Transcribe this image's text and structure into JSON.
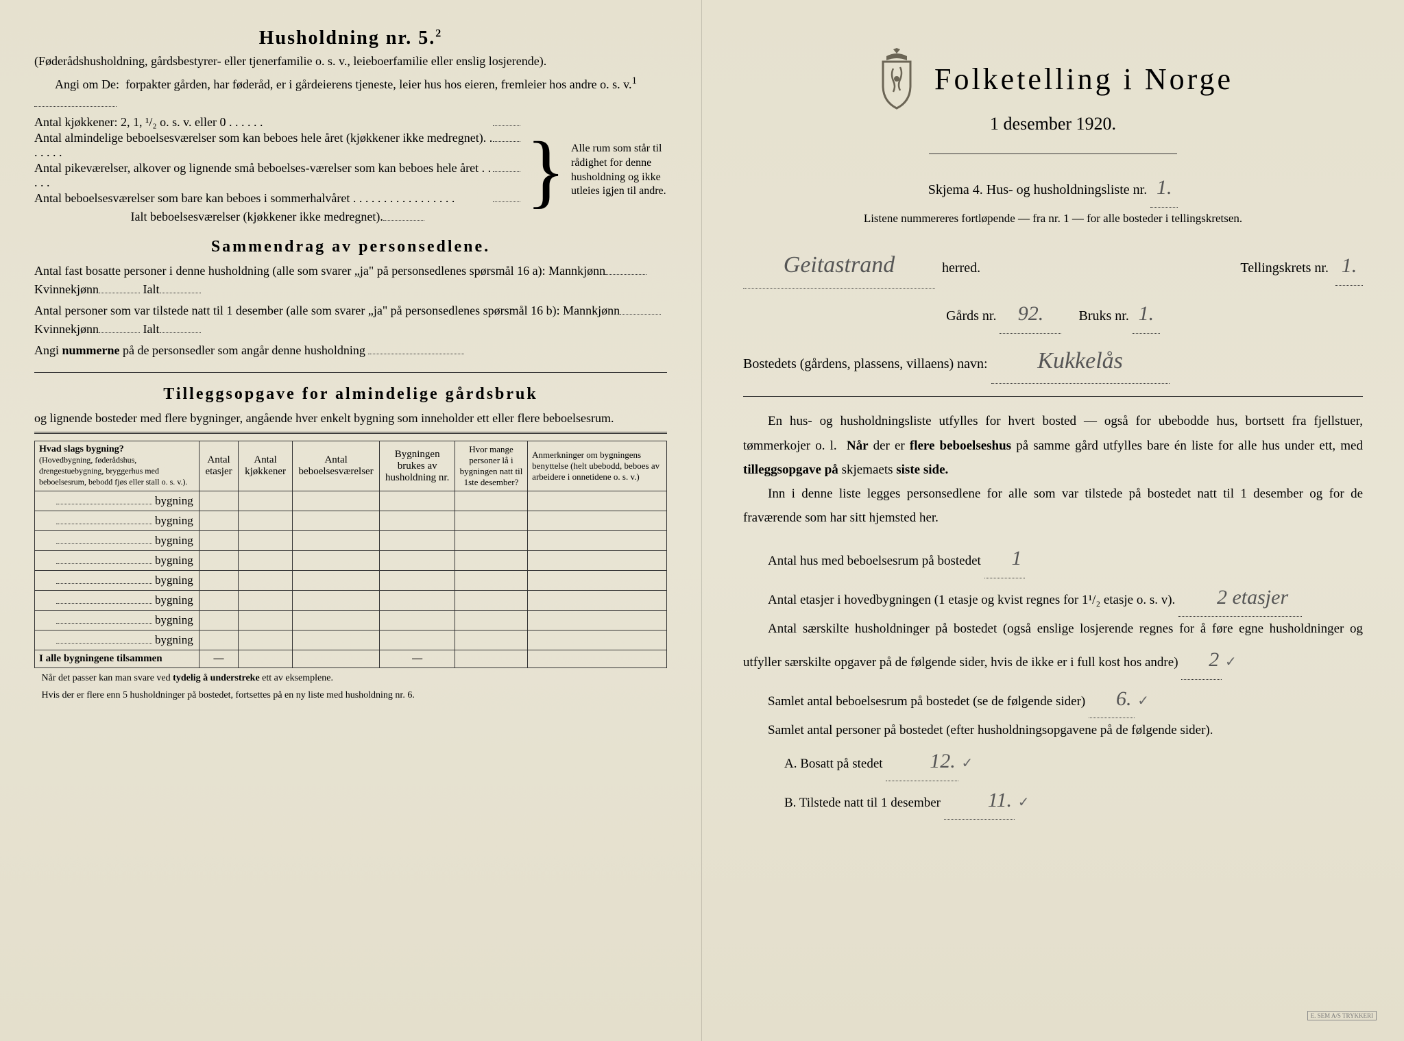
{
  "left": {
    "heading": "Husholdning nr. 5.",
    "heading_sup": "2",
    "para1": "(Føderådshusholdning, gårdsbestyrer- eller tjenerfamilie o. s. v., leieboerfamilie eller enslig losjerende).",
    "para2a": "Angi om De:",
    "para2b": "forpakter gården, har føderåd, er i gårdeierens tjeneste, leier hus hos eieren, fremleier hos andre o. s. v.",
    "para2sup": "1",
    "brace_items": [
      "Antal kjøkkener: 2, 1, ¹/₂ o. s. v. eller 0 . . . . . .",
      "Antal almindelige beboelsesværelser som kan beboes hele året (kjøkkener ikke medregnet).  . . . . . .",
      "Antal pikeværelser, alkover og lignende små beboelses-værelser som kan beboes hele året . . . . .",
      "Antal beboelsesværelser som bare kan beboes i sommerhalvåret . . . . . . . . . . . . . . . . ."
    ],
    "brace_total": "Ialt beboelsesværelser  (kjøkkener ikke medregnet).",
    "brace_right": "Alle rum som står til rådighet for denne husholdning og ikke utleies igjen til andre.",
    "sammendrag_title": "Sammendrag av personsedlene.",
    "samm_l1": "Antal fast bosatte personer i denne husholdning (alle som svarer „ja\" på personsedlenes spørsmål 16 a): Mannkjønn",
    "samm_l1b": "Kvinnekjønn",
    "samm_l1c": "Ialt",
    "samm_l2": "Antal personer som var tilstede natt til 1 desember (alle som svarer „ja\" på personsedlenes spørsmål 16 b): Mannkjønn",
    "samm_l3": "Angi nummerne på de personsedler som angår denne husholdning",
    "tillegg_title": "Tilleggsopgave for almindelige gårdsbruk",
    "tillegg_sub": "og lignende bosteder med flere bygninger, angående hver enkelt bygning som inneholder ett eller flere beboelsesrum.",
    "table": {
      "headers": [
        "Hvad slags bygning?\n(Hovedbygning, føderådshus, drengestuebygning, bryggerhus med beboelsesrum, bebodd fjøs eller stall o. s. v.).",
        "Antal etasjer",
        "Antal kjøkkener",
        "Antal beboelsesværelser",
        "Bygningen brukes av husholdning nr.",
        "Hvor mange personer lå i bygningen natt til 1ste desember?",
        "Anmerkninger om bygningens benyttelse (helt ubebodd, beboes av arbeidere i onnetidene o. s. v.)"
      ],
      "row_label": "bygning",
      "row_count": 8,
      "total_label": "I alle bygningene tilsammen",
      "dash": "—"
    },
    "footnote1": "Når det passer kan man svare ved tydelig å understreke ett av eksemplene.",
    "footnote2": "Hvis der er flere enn 5 husholdninger på bostedet, fortsettes på en ny liste med husholdning nr. 6."
  },
  "right": {
    "title": "Folketelling i Norge",
    "date": "1 desember 1920.",
    "skjema_a": "Skjema 4.  Hus- og husholdningsliste nr.",
    "skjema_nr": "1.",
    "listene": "Listene nummereres fortløpende — fra nr. 1 — for alle bosteder i tellingskretsen.",
    "herred_value": "Geitastrand",
    "herred_label": "herred.",
    "tellingskrets_label": "Tellingskrets nr.",
    "tellingskrets_nr": "1.",
    "gards_label": "Gårds nr.",
    "gards_nr": "92.",
    "bruks_label": "Bruks nr.",
    "bruks_nr": "1.",
    "bosted_label": "Bostedets (gårdens, plassens, villaens) navn:",
    "bosted_value": "Kukkelås",
    "body1": "En hus- og husholdningsliste utfylles for hvert bosted — også for ubebodde hus, bortsett fra fjellstuer, tømmerkojer o. l.  Når der er flere beboelseshus på samme gård utfylles bare én liste for alle hus under ett, med tilleggsopgave på skjemaets siste side.",
    "body2": "Inn i denne liste legges personsedlene for alle som var tilstede på bostedet natt til 1 desember og for de fraværende som har sitt hjemsted her.",
    "q_hus": "Antal hus med beboelsesrum på bostedet",
    "q_hus_val": "1",
    "q_etasjer": "Antal etasjer i hovedbygningen (1 etasje og kvist regnes for 1¹/₂ etasje o. s. v).",
    "q_etasjer_val": "2 etasjer",
    "q_hushold": "Antal særskilte husholdninger på bostedet (også enslige losjerende regnes for å føre egne husholdninger og utfyller særskilte opgaver på de følgende sider, hvis de ikke er i full kost hos andre)",
    "q_hushold_val": "2",
    "q_samlet_rum": "Samlet antal beboelsesrum på bostedet (se de følgende sider)",
    "q_samlet_rum_val": "6.",
    "q_samlet_pers": "Samlet antal personer på bostedet (efter husholdningsopgavene på de følgende sider).",
    "q_A": "A.  Bosatt på stedet",
    "q_A_val": "12.",
    "q_B": "B.  Tilstede natt til 1 desember",
    "q_B_val": "11.",
    "check": "✓"
  }
}
